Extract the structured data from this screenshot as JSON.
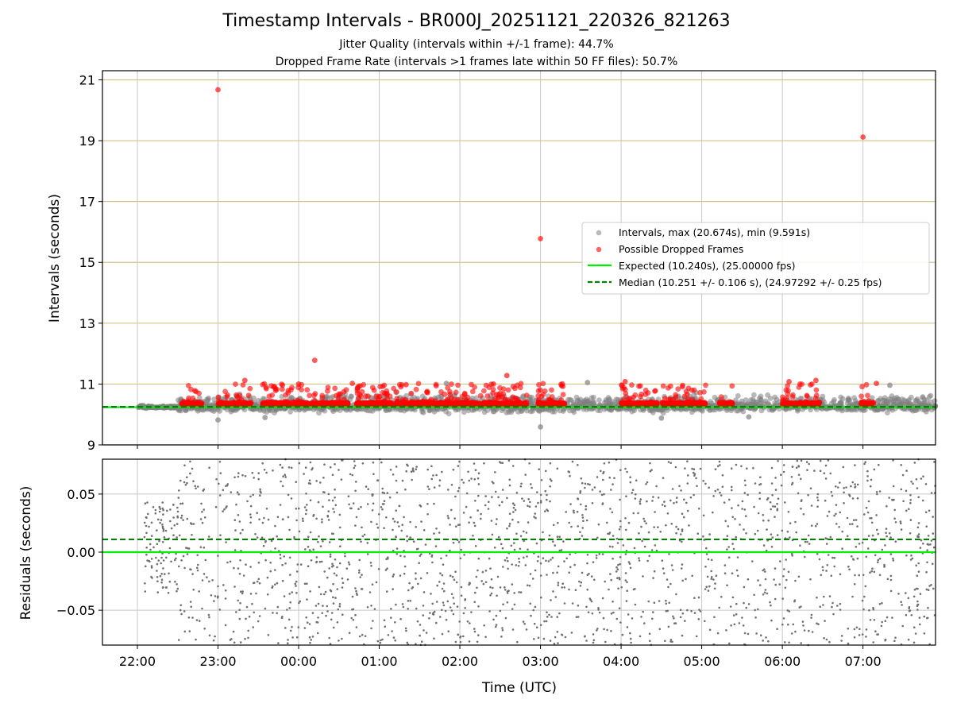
{
  "chart_data": [
    {
      "type": "scatter",
      "panel": "intervals",
      "title": "Timestamp Intervals - BR000J_20251121_220326_821263",
      "subtitle_lines": [
        "Jitter Quality (intervals within +/-1 frame): 44.7%",
        "Dropped Frame Rate (intervals >1 frames late within 50 FF files): 50.7%"
      ],
      "ylabel": "Intervals (seconds)",
      "xlim": [
        "21:34",
        "07:54"
      ],
      "ylim": [
        9,
        21.3
      ],
      "yticks": [
        9,
        11,
        13,
        15,
        17,
        19,
        21
      ],
      "ytick_labels": [
        "9",
        "11",
        "13",
        "15",
        "17",
        "19",
        "21"
      ],
      "grid": true,
      "legend_position": "center-right",
      "series": [
        {
          "name": "Intervals, max (20.674s), min (9.591s)",
          "kind": "scatter",
          "color": "#808080",
          "band_segments": [
            {
              "x_start": "22:00",
              "x_end": "22:30",
              "y_mean": 10.24,
              "spread": 0.05
            },
            {
              "x_start": "22:30",
              "x_end": "07:54",
              "y_mean": 10.28,
              "spread": 0.32
            }
          ],
          "points": [
            [
              "23:00",
              9.82
            ],
            [
              "23:35",
              9.9
            ],
            [
              "03:00",
              9.591
            ],
            [
              "04:30",
              9.88
            ],
            [
              "05:35",
              9.92
            ],
            [
              "07:20",
              10.96
            ],
            [
              "01:50",
              11.02
            ],
            [
              "03:35",
              11.05
            ]
          ]
        },
        {
          "name": "Possible Dropped Frames",
          "kind": "scatter",
          "color": "#ff0000",
          "clusters": [
            {
              "x_start": "22:33",
              "x_end": "22:48",
              "y_base": 10.32
            },
            {
              "x_start": "23:00",
              "x_end": "23:25",
              "y_base": 10.32
            },
            {
              "x_start": "23:33",
              "x_end": "00:37",
              "y_base": 10.32
            },
            {
              "x_start": "00:43",
              "x_end": "01:18",
              "y_base": 10.32
            },
            {
              "x_start": "01:18",
              "x_end": "01:55",
              "y_base": 10.32
            },
            {
              "x_start": "01:53",
              "x_end": "02:50",
              "y_base": 10.32
            },
            {
              "x_start": "02:58",
              "x_end": "03:18",
              "y_base": 10.32
            },
            {
              "x_start": "04:00",
              "x_end": "04:27",
              "y_base": 10.32
            },
            {
              "x_start": "04:30",
              "x_end": "05:03",
              "y_base": 10.32
            },
            {
              "x_start": "05:13",
              "x_end": "05:23",
              "y_base": 10.32
            },
            {
              "x_start": "06:00",
              "x_end": "06:28",
              "y_base": 10.32
            },
            {
              "x_start": "06:58",
              "x_end": "07:08",
              "y_base": 10.32
            }
          ],
          "points": [
            [
              "23:00",
              20.674
            ],
            [
              "07:00",
              19.12
            ],
            [
              "03:00",
              15.78
            ],
            [
              "00:12",
              11.78
            ],
            [
              "02:35",
              11.28
            ],
            [
              "06:25",
              11.12
            ],
            [
              "06:05",
              11.08
            ],
            [
              "07:10",
              11.02
            ],
            [
              "23:20",
              11.12
            ],
            [
              "00:00",
              11.0
            ],
            [
              "04:03",
              11.08
            ],
            [
              "02:25",
              11.0
            ],
            [
              "00:40",
              11.02
            ],
            [
              "01:20",
              10.98
            ]
          ]
        },
        {
          "name": "Expected (10.240s), (25.00000 fps)",
          "kind": "line",
          "y": 10.24,
          "color": "#00ee00",
          "style": "solid"
        },
        {
          "name": "Median (10.251 +/- 0.106 s), (24.97292 +/- 0.25 fps)",
          "kind": "line",
          "y": 10.251,
          "color": "#008000",
          "style": "dashed"
        }
      ]
    },
    {
      "type": "scatter",
      "panel": "residuals",
      "xlabel": "Time (UTC)",
      "ylabel": "Residuals (seconds)",
      "xlim": [
        "21:34",
        "07:54"
      ],
      "ylim": [
        -0.08,
        0.08
      ],
      "xticks": [
        "22:00",
        "23:00",
        "00:00",
        "01:00",
        "02:00",
        "03:00",
        "04:00",
        "05:00",
        "06:00",
        "07:00"
      ],
      "yticks": [
        -0.05,
        0.0,
        0.05
      ],
      "ytick_labels": [
        "−0.05",
        "0.00",
        "0.05"
      ],
      "grid": true,
      "series": [
        {
          "name": "residuals",
          "kind": "scatter",
          "color": "#707070",
          "x_start": "22:05",
          "x_end": "07:54",
          "y_range": [
            -0.08,
            0.08
          ],
          "approx_count": 2000
        },
        {
          "name": "expected",
          "kind": "line",
          "y": 0.0,
          "color": "#00ee00",
          "style": "solid"
        },
        {
          "name": "median",
          "kind": "line",
          "y": 0.011,
          "color": "#008000",
          "style": "dashed"
        }
      ]
    }
  ]
}
